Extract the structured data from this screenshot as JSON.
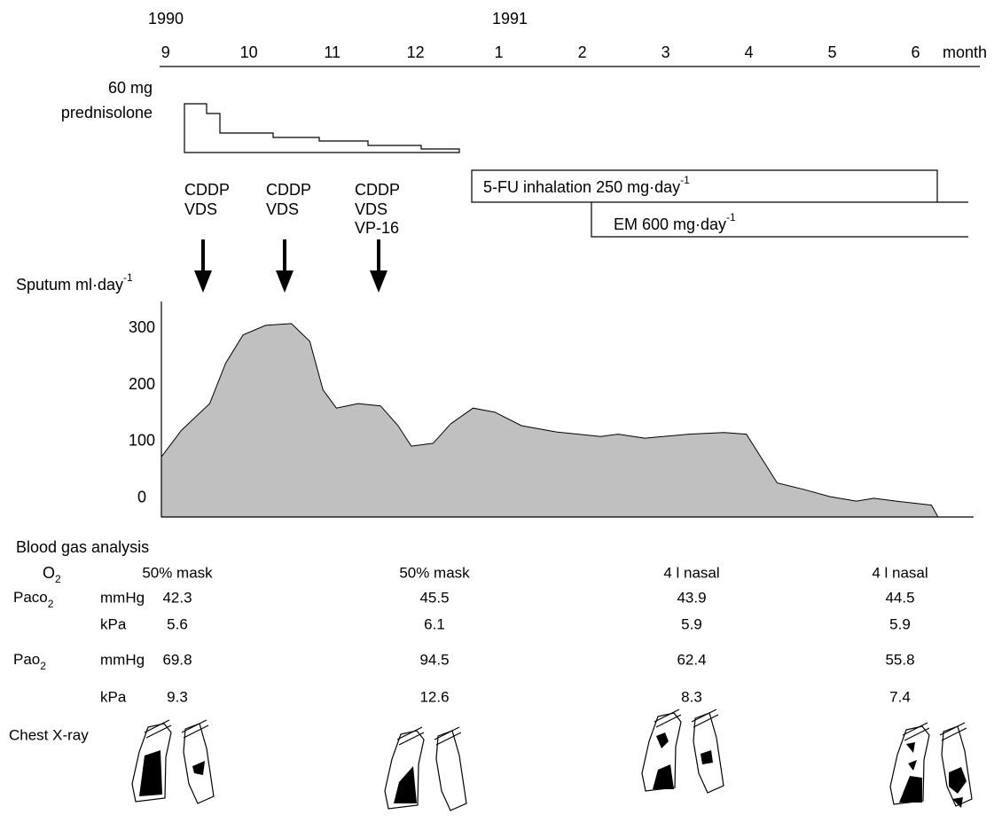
{
  "timeline": {
    "years": [
      "1990",
      "1991"
    ],
    "unit": "month"
  },
  "prednisolone": {
    "dose": "60 mg",
    "name": "prednisolone"
  },
  "chemo": [
    [
      "CDDP",
      "VDS"
    ],
    [
      "CDDP",
      "VDS"
    ],
    [
      "CDDP",
      "VDS",
      "VP-16"
    ]
  ],
  "inhalation": {
    "label": "5-FU inhalation 250 mg·day",
    "sup": "-1"
  },
  "em": {
    "label": "EM 600 mg·day",
    "sup": "-1"
  },
  "chart_data": {
    "type": "area",
    "ylabel": "Sputum ml·day",
    "ylabel_sup": "-1",
    "color": "#c0c0c0",
    "x": [
      -0.05,
      0.19,
      0.53,
      0.72,
      0.93,
      1.2,
      1.51,
      1.73,
      1.89,
      2.05,
      2.31,
      2.58,
      2.79,
      2.95,
      3.21,
      3.42,
      3.69,
      3.95,
      4.27,
      4.69,
      5.22,
      5.43,
      5.75,
      6.28,
      6.7,
      6.97,
      7.34,
      7.65,
      7.97,
      8.29,
      8.5,
      8.82,
      9.19,
      9.27
    ],
    "values": [
      73,
      120,
      167,
      238,
      288,
      305,
      308,
      277,
      191,
      159,
      167,
      163,
      128,
      92,
      97,
      131,
      159,
      152,
      128,
      117,
      109,
      113,
      106,
      113,
      116,
      113,
      27,
      16,
      3,
      -5,
      0,
      -6,
      -12,
      -33
    ],
    "xlim": [
      -0.05,
      9.75
    ],
    "xticks": [
      {
        "value": 0,
        "label": "9"
      },
      {
        "value": 1,
        "label": "10"
      },
      {
        "value": 2,
        "label": "11"
      },
      {
        "value": 3,
        "label": "12"
      },
      {
        "value": 4,
        "label": "1"
      },
      {
        "value": 5,
        "label": "2"
      },
      {
        "value": 6,
        "label": "3"
      },
      {
        "value": 7,
        "label": "4"
      },
      {
        "value": 8,
        "label": "5"
      },
      {
        "value": 9,
        "label": "6"
      }
    ],
    "ylim": [
      -33,
      347
    ],
    "yticks": [
      0,
      100,
      200,
      300
    ]
  },
  "blood_gas": {
    "title": "Blood gas analysis",
    "o2": {
      "label": "O",
      "sub": "2",
      "values": [
        "50% mask",
        "50% mask",
        "4 l nasal",
        "4 l nasal"
      ]
    },
    "rows": [
      {
        "label": "Paco",
        "sub": "2",
        "unit": "mmHg",
        "values": [
          42.3,
          45.5,
          43.9,
          44.5
        ]
      },
      {
        "unit": "kPa",
        "values": [
          5.6,
          6.1,
          5.9,
          5.9
        ]
      },
      {
        "label": "Pao",
        "sub": "2",
        "unit": "mmHg",
        "values": [
          69.8,
          94.5,
          62.4,
          55.8
        ]
      },
      {
        "unit": "kPa",
        "values": [
          9.3,
          12.6,
          8.3,
          7.4
        ]
      }
    ]
  },
  "chest_xray": {
    "label": "Chest X-ray"
  }
}
